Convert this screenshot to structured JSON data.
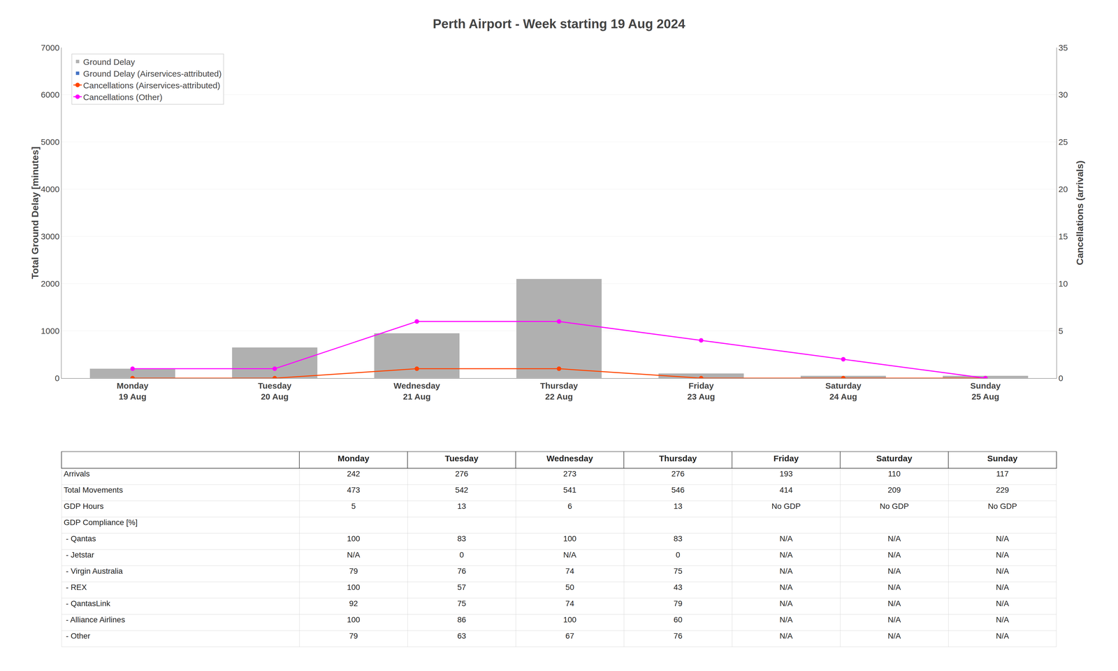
{
  "chart_data": [
    {
      "type": "bar",
      "title": "Perth Airport - Week starting 19 Aug 2024",
      "categories": [
        "Monday\n19 Aug",
        "Tuesday\n20 Aug",
        "Wednesday\n21 Aug",
        "Thursday\n22 Aug",
        "Friday\n23 Aug",
        "Saturday\n24 Aug",
        "Sunday\n25 Aug"
      ],
      "series": [
        {
          "name": "Ground Delay",
          "type": "bar",
          "color": "#b0b0b0",
          "values": [
            200,
            650,
            950,
            2100,
            100,
            50,
            50
          ]
        },
        {
          "name": "Ground Delay (Airservices-attributed)",
          "type": "bar",
          "color": "#4472c4",
          "values": [
            0,
            0,
            0,
            0,
            0,
            0,
            0
          ]
        },
        {
          "name": "Cancellations (Airservices-attributed)",
          "type": "line",
          "axis": "y2",
          "marker": "circle",
          "color": "#ff4500",
          "values": [
            0,
            0,
            1,
            1,
            0,
            0,
            0
          ]
        },
        {
          "name": "Cancellations (Other)",
          "type": "line",
          "axis": "y2",
          "marker": "circle",
          "color": "#ff00ff",
          "values": [
            1,
            1,
            6,
            6,
            4,
            2,
            0
          ]
        }
      ],
      "stacked": false,
      "ylabel": "Total Ground Delay [minutes]",
      "y2label": "Cancellations (arrivals)",
      "ylim": [
        0,
        7000
      ],
      "yticks": [
        0,
        1000,
        2000,
        3000,
        4000,
        5000,
        6000,
        7000
      ],
      "y2lim": [
        0,
        35
      ],
      "y2ticks": [
        0,
        5,
        10,
        15,
        20,
        25,
        30,
        35
      ],
      "grid": true,
      "legend": "upper left"
    },
    {
      "type": "table",
      "columns": [
        "Monday",
        "Tuesday",
        "Wednesday",
        "Thursday",
        "Friday",
        "Saturday",
        "Sunday"
      ],
      "rows": [
        {
          "name": "Arrivals",
          "values": [
            242,
            276,
            273,
            276,
            193,
            110,
            117
          ]
        },
        {
          "name": "Total Movements",
          "values": [
            473,
            542,
            541,
            546,
            414,
            209,
            229
          ]
        },
        {
          "name": "GDP Hours",
          "values": [
            5,
            13,
            6,
            13,
            "No GDP",
            "No GDP",
            "No GDP"
          ]
        },
        {
          "name": "GDP Compliance [%]",
          "values": [
            null,
            null,
            null,
            null,
            null,
            null,
            null
          ]
        },
        {
          "name": " - Qantas",
          "values": [
            100,
            83,
            100,
            83,
            "N/A",
            "N/A",
            "N/A"
          ]
        },
        {
          "name": " - Jetstar",
          "values": [
            "N/A",
            0,
            "N/A",
            0,
            "N/A",
            "N/A",
            "N/A"
          ]
        },
        {
          "name": " - Virgin Australia",
          "values": [
            79,
            76,
            74,
            75,
            "N/A",
            "N/A",
            "N/A"
          ]
        },
        {
          "name": " - REX",
          "values": [
            100,
            57,
            50,
            43,
            "N/A",
            "N/A",
            "N/A"
          ]
        },
        {
          "name": " - QantasLink",
          "values": [
            92,
            75,
            74,
            79,
            "N/A",
            "N/A",
            "N/A"
          ]
        },
        {
          "name": " - Alliance Airlines",
          "values": [
            100,
            86,
            100,
            60,
            "N/A",
            "N/A",
            "N/A"
          ]
        },
        {
          "name": " - Other",
          "values": [
            79,
            63,
            67,
            76,
            "N/A",
            "N/A",
            "N/A"
          ]
        }
      ]
    }
  ]
}
